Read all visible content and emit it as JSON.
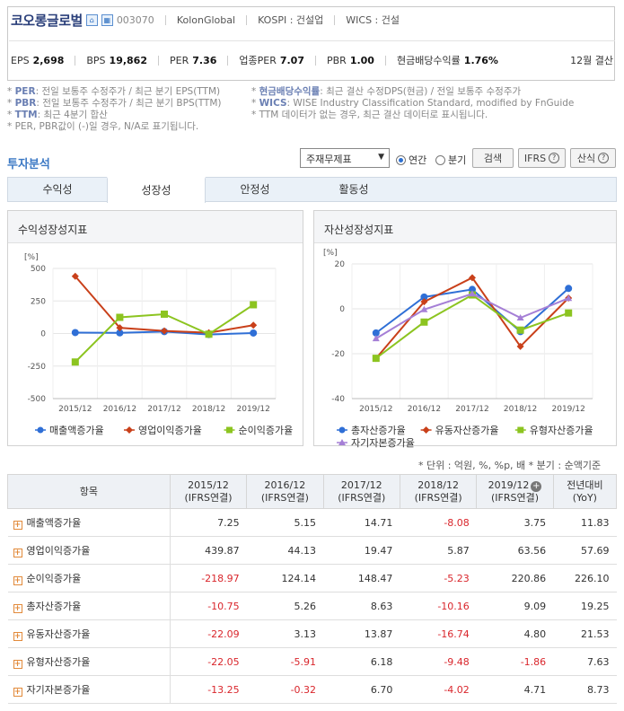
{
  "company": {
    "name": "코오롱글로벌",
    "code": "003070",
    "eng_name": "KolonGlobal",
    "market": "KOSPI : 건설업",
    "wics": "WICS : 건설",
    "settlement": "12월 결산"
  },
  "metrics": [
    {
      "label": "EPS",
      "value": "2,698"
    },
    {
      "label": "BPS",
      "value": "19,862"
    },
    {
      "label": "PER",
      "value": "7.36"
    },
    {
      "label": "업종PER",
      "value": "7.07"
    },
    {
      "label": "PBR",
      "value": "1.00"
    },
    {
      "label": "현금배당수익률",
      "value": "1.76%"
    }
  ],
  "notes_left": [
    {
      "key": "PER",
      "text": ": 전일 보통주 수정주가 / 최근 분기 EPS(TTM)"
    },
    {
      "key": "PBR",
      "text": ": 전일 보통주 수정주가 / 최근 분기 BPS(TTM)"
    },
    {
      "key": "TTM",
      "text": ": 최근 4분기 합산"
    },
    {
      "key": "",
      "text": "PER, PBR값이 (-)일 경우, N/A로 표기됩니다."
    }
  ],
  "notes_right": [
    {
      "key": "현금배당수익률",
      "text": ": 최근 결산 수정DPS(현금) / 전일 보통주 수정주가"
    },
    {
      "key": "WICS",
      "text": ": WISE Industry Classification Standard, modified by FnGuide"
    },
    {
      "key": "",
      "text": "TTM 데이터가 없는 경우, 최근 결산 데이터로 표시됩니다."
    }
  ],
  "section_title": "투자분석",
  "controls": {
    "select_value": "주재무제표",
    "radio_annual": "연간",
    "radio_quarter": "분기",
    "search_btn": "검색",
    "ifrs_btn": "IFRS",
    "formula_btn": "산식"
  },
  "tabs": [
    "수익성",
    "성장성",
    "안정성",
    "활동성"
  ],
  "active_tab": 1,
  "charts": {
    "left_title": "수익성장성지표",
    "right_title": "자산성장성지표",
    "unit": "[%]"
  },
  "chart_data": [
    {
      "type": "line",
      "title": "수익성장성지표",
      "x": [
        "2015/12",
        "2016/12",
        "2017/12",
        "2018/12",
        "2019/12"
      ],
      "ylim": [
        -500,
        500
      ],
      "yticks": [
        500,
        250,
        0,
        -250,
        -500
      ],
      "grid": true,
      "legend": "bottom",
      "series": [
        {
          "name": "매출액증가율",
          "color": "#2f6fd6",
          "marker": "circle",
          "values": [
            7.25,
            5.15,
            14.71,
            -8.08,
            3.75
          ]
        },
        {
          "name": "영업이익증가율",
          "color": "#c9401a",
          "marker": "diamond",
          "values": [
            439.87,
            44.13,
            19.47,
            5.87,
            63.56
          ]
        },
        {
          "name": "순이익증가율",
          "color": "#8cc420",
          "marker": "square",
          "values": [
            -218.97,
            124.14,
            148.47,
            -5.23,
            220.86
          ]
        }
      ]
    },
    {
      "type": "line",
      "title": "자산성장성지표",
      "x": [
        "2015/12",
        "2016/12",
        "2017/12",
        "2018/12",
        "2019/12"
      ],
      "ylim": [
        -40,
        20
      ],
      "yticks": [
        20,
        0,
        -20,
        -40
      ],
      "grid": true,
      "legend": "bottom",
      "series": [
        {
          "name": "총자산증가율",
          "color": "#2f6fd6",
          "marker": "circle",
          "values": [
            -10.75,
            5.26,
            8.63,
            -10.16,
            9.09
          ]
        },
        {
          "name": "유동자산증가율",
          "color": "#c9401a",
          "marker": "diamond",
          "values": [
            -22.09,
            3.13,
            13.87,
            -16.74,
            4.8
          ]
        },
        {
          "name": "유형자산증가율",
          "color": "#8cc420",
          "marker": "square",
          "values": [
            -22.05,
            -5.91,
            6.18,
            -9.48,
            -1.86
          ]
        },
        {
          "name": "자기자본증가율",
          "color": "#a57fd6",
          "marker": "triangle",
          "values": [
            -13.25,
            -0.32,
            6.7,
            -4.02,
            4.71
          ]
        }
      ]
    }
  ],
  "units_note": "* 단위 : 억원, %, %p, 배     * 분기 : 순액기준",
  "table": {
    "headers": [
      "항목",
      "2015/12",
      "2016/12",
      "2017/12",
      "2018/12",
      "2019/12",
      "전년대비"
    ],
    "subheaders": [
      "",
      "(IFRS연결)",
      "(IFRS연결)",
      "(IFRS연결)",
      "(IFRS연결)",
      "(IFRS연결)",
      "(YoY)"
    ],
    "rows": [
      {
        "label": "매출액증가율",
        "cells": [
          "7.25",
          "5.15",
          "14.71",
          "-8.08",
          "3.75",
          "11.83"
        ]
      },
      {
        "label": "영업이익증가율",
        "cells": [
          "439.87",
          "44.13",
          "19.47",
          "5.87",
          "63.56",
          "57.69"
        ]
      },
      {
        "label": "순이익증가율",
        "cells": [
          "-218.97",
          "124.14",
          "148.47",
          "-5.23",
          "220.86",
          "226.10"
        ]
      },
      {
        "label": "총자산증가율",
        "cells": [
          "-10.75",
          "5.26",
          "8.63",
          "-10.16",
          "9.09",
          "19.25"
        ]
      },
      {
        "label": "유동자산증가율",
        "cells": [
          "-22.09",
          "3.13",
          "13.87",
          "-16.74",
          "4.80",
          "21.53"
        ]
      },
      {
        "label": "유형자산증가율",
        "cells": [
          "-22.05",
          "-5.91",
          "6.18",
          "-9.48",
          "-1.86",
          "7.63"
        ]
      },
      {
        "label": "자기자본증가율",
        "cells": [
          "-13.25",
          "-0.32",
          "6.70",
          "-4.02",
          "4.71",
          "8.73"
        ]
      }
    ]
  }
}
